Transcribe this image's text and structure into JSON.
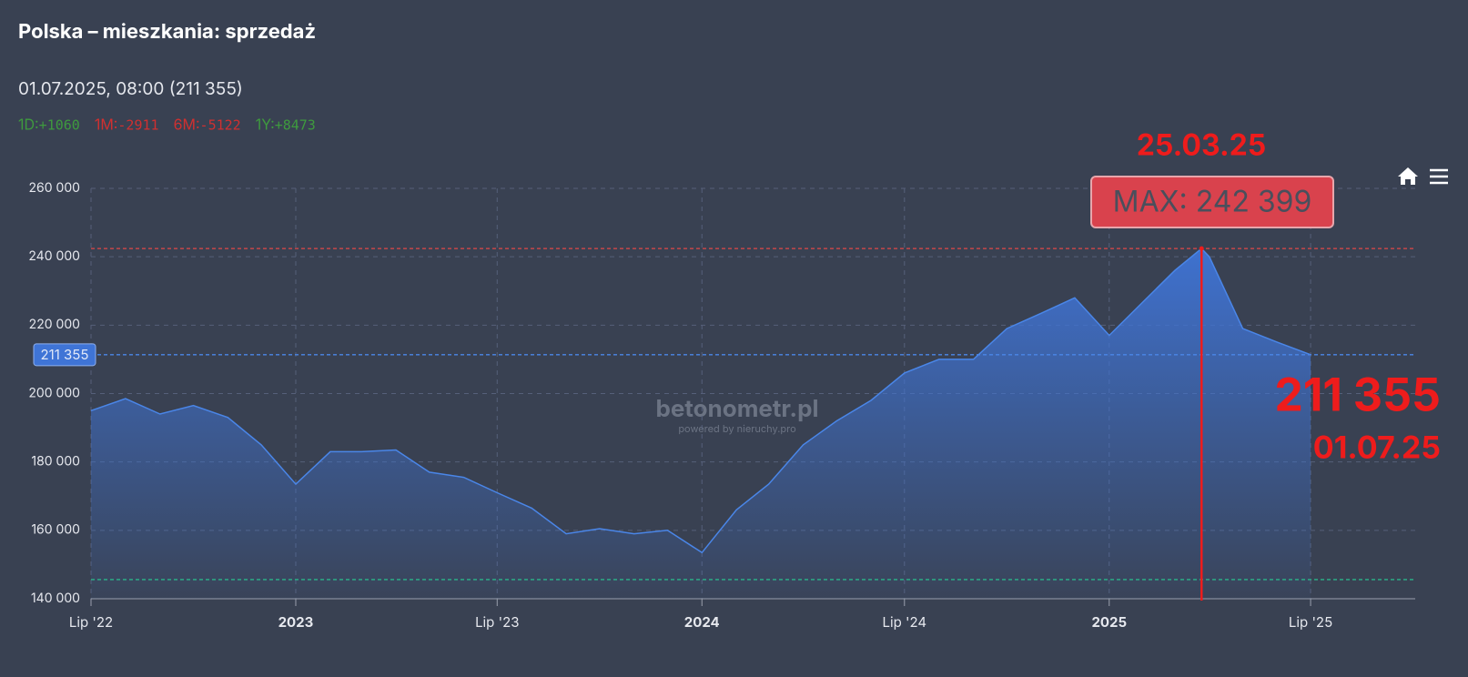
{
  "header": {
    "title": "Polska – mieszkania: sprzedaż",
    "subtitle": "01.07.2025, 08:00 (211 355)",
    "changes": [
      {
        "label": "1D:",
        "value": "+1060",
        "color": "#3e9a3e"
      },
      {
        "label": "1M:",
        "value": "-2911",
        "color": "#d03030"
      },
      {
        "label": "6M:",
        "value": "-5122",
        "color": "#d03030"
      },
      {
        "label": "1Y:",
        "value": "+8473",
        "color": "#3e9a3e"
      }
    ]
  },
  "chart_data": {
    "type": "area",
    "x": [
      "2022-07-01",
      "2022-08-01",
      "2022-09-01",
      "2022-10-01",
      "2022-11-01",
      "2022-12-01",
      "2023-01-01",
      "2023-02-01",
      "2023-03-01",
      "2023-04-01",
      "2023-05-01",
      "2023-06-01",
      "2023-07-01",
      "2023-08-01",
      "2023-09-01",
      "2023-10-01",
      "2023-11-01",
      "2023-12-01",
      "2024-01-01",
      "2024-02-01",
      "2024-03-01",
      "2024-04-01",
      "2024-05-01",
      "2024-06-01",
      "2024-07-01",
      "2024-08-01",
      "2024-09-01",
      "2024-10-01",
      "2024-11-01",
      "2024-12-01",
      "2025-01-01",
      "2025-02-01",
      "2025-03-01",
      "2025-03-25",
      "2025-04-01",
      "2025-05-01",
      "2025-06-01",
      "2025-07-01"
    ],
    "series": [
      {
        "color": "#4a86e8",
        "values": [
          195000,
          198500,
          194000,
          196500,
          193000,
          185000,
          173500,
          183000,
          183000,
          183500,
          177000,
          175500,
          171000,
          166500,
          159000,
          160500,
          159000,
          160000,
          153500,
          166000,
          173500,
          185000,
          192000,
          198000,
          206000,
          210000,
          210000,
          219000,
          223500,
          228000,
          217000,
          227000,
          236000,
          242399,
          240000,
          219000,
          215000,
          211355
        ]
      }
    ],
    "xlim": [
      "2022-07-01",
      "2025-10-03"
    ],
    "xticks": [
      {
        "value": "2022-07-01",
        "label": "Lip '22"
      },
      {
        "value": "2023-01-01",
        "label": "2023"
      },
      {
        "value": "2023-07-01",
        "label": "Lip '23"
      },
      {
        "value": "2024-01-01",
        "label": "2024"
      },
      {
        "value": "2024-07-01",
        "label": "Lip '24"
      },
      {
        "value": "2025-01-01",
        "label": "2025"
      },
      {
        "value": "2025-07-01",
        "label": "Lip '25"
      }
    ],
    "ylim": [
      140000,
      260000
    ],
    "yticks": [
      {
        "value": 140000,
        "label": "140 000"
      },
      {
        "value": 160000,
        "label": "160 000"
      },
      {
        "value": 180000,
        "label": "180 000"
      },
      {
        "value": 200000,
        "label": "200 000"
      },
      {
        "value": 220000,
        "label": "220 000"
      },
      {
        "value": 240000,
        "label": "240 000"
      },
      {
        "value": 260000,
        "label": "260 000"
      }
    ],
    "grid": true,
    "max_line": {
      "value": 242399,
      "color": "#e04848"
    },
    "current_line": {
      "value": 211355,
      "label": "211 355",
      "color": "#4a86e8"
    },
    "min_line": {
      "value": 145600,
      "color": "#2bb58a"
    },
    "max_marker": {
      "x": "2025-03-25",
      "date_label": "25.03.25",
      "label": "MAX: 242 399"
    },
    "current_annotation": {
      "value_label": "211 355",
      "date_label": "01.07.25"
    },
    "watermark": "betonometr.pl",
    "watermark_sub": "powered by nieruchy.pro"
  }
}
